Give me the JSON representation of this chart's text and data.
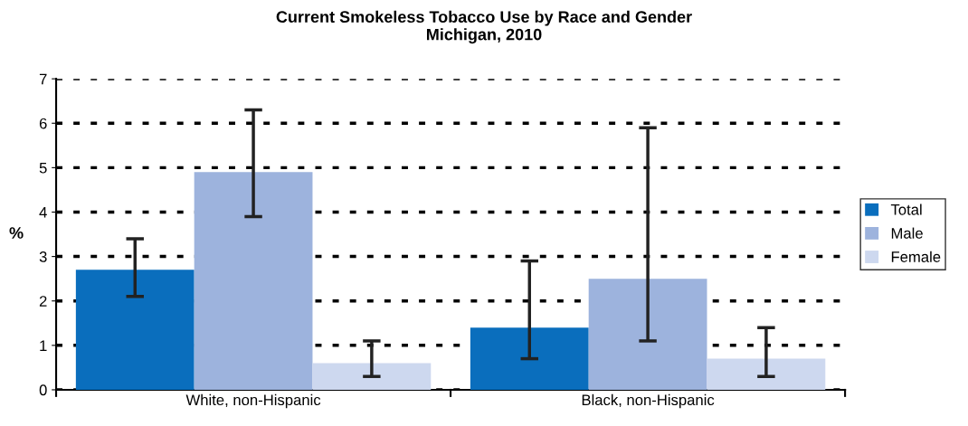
{
  "chart_data": {
    "type": "bar",
    "title": "Current Smokeless Tobacco Use by Race and Gender\nMichigan, 2010",
    "ylabel": "%",
    "categories": [
      "White, non-Hispanic",
      "Black, non-Hispanic"
    ],
    "series": [
      {
        "name": "Total",
        "color": "#0a6ebd",
        "values": [
          2.7,
          1.4
        ],
        "errors": [
          [
            2.1,
            3.4
          ],
          [
            0.7,
            2.9
          ]
        ]
      },
      {
        "name": "Male",
        "color": "#9db3dd",
        "values": [
          4.9,
          2.5
        ],
        "errors": [
          [
            3.9,
            6.3
          ],
          [
            1.1,
            5.9
          ]
        ]
      },
      {
        "name": "Female",
        "color": "#cdd8ef",
        "values": [
          0.6,
          0.7
        ],
        "errors": [
          [
            0.3,
            1.1
          ],
          [
            0.3,
            1.4
          ]
        ]
      }
    ],
    "ylim": [
      0,
      7
    ],
    "yticks": [
      0,
      1,
      2,
      3,
      4,
      5,
      6,
      7
    ],
    "grid": "y",
    "legend": "right"
  }
}
